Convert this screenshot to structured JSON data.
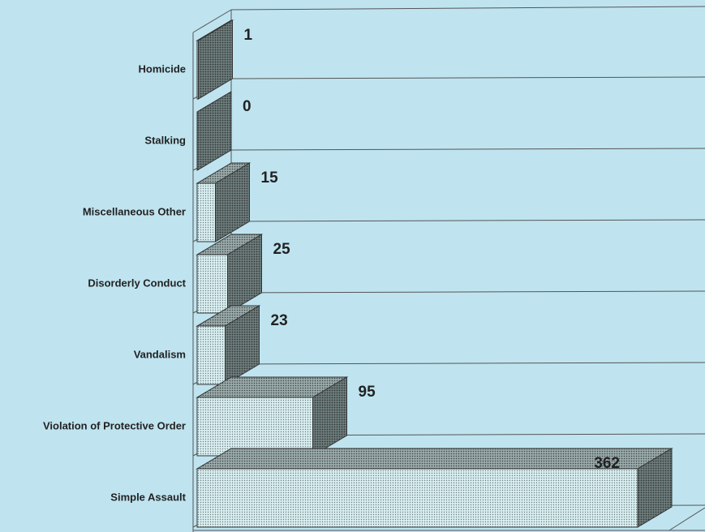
{
  "chart_data": {
    "type": "bar",
    "orientation": "horizontal",
    "categories": [
      "Homicide",
      "Stalking",
      "Miscellaneous Other",
      "Disorderly Conduct",
      "Vandalism",
      "Violation of Protective Order",
      "Simple Assault"
    ],
    "values": [
      1,
      0,
      15,
      25,
      23,
      95,
      362
    ],
    "color": "#cfe6ea",
    "xlim": [
      0,
      400
    ]
  }
}
